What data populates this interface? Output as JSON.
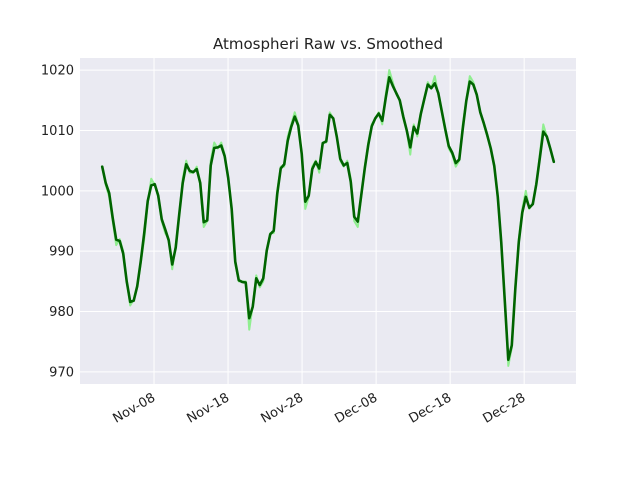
{
  "chart_data": {
    "type": "line",
    "title": "Atmospheri Raw vs. Smoothed",
    "xlabel": "",
    "ylabel": "",
    "x_start": "2023-11-01",
    "x_end": "2024-01-01",
    "xlim": [
      "2023-10-29",
      "2024-01-04"
    ],
    "ylim": [
      968,
      1022
    ],
    "x_ticks": [
      {
        "date": "2023-11-08",
        "label": "Nov-08"
      },
      {
        "date": "2023-11-18",
        "label": "Nov-18"
      },
      {
        "date": "2023-11-28",
        "label": "Nov-28"
      },
      {
        "date": "2023-12-08",
        "label": "Dec-08"
      },
      {
        "date": "2023-12-18",
        "label": "Dec-18"
      },
      {
        "date": "2023-12-28",
        "label": "Dec-28"
      }
    ],
    "y_ticks": [
      970,
      980,
      990,
      1000,
      1010,
      1020
    ],
    "grid": true,
    "legend": "none",
    "series": [
      {
        "color": "#90ee90",
        "values": [
          1004.0,
          1001.0,
          999.0,
          995.0,
          991.0,
          992.0,
          990.0,
          985.0,
          981.0,
          982.0,
          984.0,
          988.0,
          992.0,
          998.0,
          1002.0,
          1001.0,
          999.0,
          995.0,
          993.0,
          992.0,
          987.0,
          991.0,
          996.0,
          1002.0,
          1005.0,
          1003.0,
          1003.0,
          1004.0,
          1001.0,
          994.0,
          995.0,
          1005.0,
          1008.0,
          1007.0,
          1008.0,
          1006.0,
          1002.0,
          997.0,
          988.0,
          985.0,
          985.0,
          985.0,
          977.0,
          981.0,
          986.0,
          984.0,
          985.0,
          990.0,
          993.0,
          993.0,
          1000.0,
          1004.0,
          1004.0,
          1009.0,
          1011.0,
          1013.0,
          1011.0,
          1006.0,
          997.0,
          999.0,
          1004.0,
          1005.0,
          1003.0,
          1008.0,
          1008.0,
          1013.0,
          1012.0,
          1009.0,
          1005.0,
          1004.0,
          1005.0,
          1002.0,
          995.0,
          994.0,
          999.0,
          1004.0,
          1008.0,
          1011.0,
          1012.0,
          1013.0,
          1011.0,
          1016.0,
          1020.0,
          1018.0,
          1016.0,
          1015.0,
          1012.0,
          1010.0,
          1006.0,
          1011.0,
          1009.0,
          1013.0,
          1015.0,
          1018.0,
          1017.0,
          1019.0,
          1016.0,
          1013.0,
          1010.0,
          1007.0,
          1006.0,
          1004.0,
          1005.0,
          1011.0,
          1015.0,
          1019.0,
          1018.0,
          1016.0,
          1013.0,
          1011.0,
          1009.0,
          1007.0,
          1004.0,
          999.0,
          991.0,
          982.0,
          971.0,
          974.0,
          984.0,
          992.0,
          997.0,
          1000.0,
          997.0,
          998.0,
          1001.0,
          1006.0,
          1011.0,
          1009.0,
          1007.0,
          1005.0
        ]
      },
      {
        "color": "#006400",
        "values": [
          1004.0,
          1001.3,
          999.6,
          995.5,
          991.9,
          991.7,
          989.6,
          985.0,
          981.6,
          981.8,
          984.2,
          988.3,
          993.0,
          998.3,
          1000.9,
          1001.1,
          999.2,
          995.3,
          993.6,
          991.8,
          987.8,
          990.6,
          996.1,
          1001.3,
          1004.4,
          1003.3,
          1003.1,
          1003.6,
          1001.3,
          994.8,
          995.1,
          1004.2,
          1007.1,
          1007.2,
          1007.5,
          1005.7,
          1002.1,
          996.9,
          988.3,
          985.2,
          984.9,
          984.8,
          978.9,
          980.8,
          985.5,
          984.4,
          985.5,
          990.1,
          992.8,
          993.4,
          999.5,
          1003.7,
          1004.4,
          1008.3,
          1010.6,
          1012.3,
          1010.8,
          1006.1,
          998.2,
          999.2,
          1003.6,
          1004.8,
          1003.7,
          1007.9,
          1008.2,
          1012.6,
          1012.0,
          1009.0,
          1005.3,
          1004.2,
          1004.6,
          1001.5,
          995.7,
          994.9,
          999.3,
          1003.7,
          1007.6,
          1010.7,
          1012.0,
          1012.8,
          1011.6,
          1015.4,
          1018.8,
          1017.4,
          1016.2,
          1015.0,
          1012.3,
          1010.0,
          1007.2,
          1010.6,
          1009.5,
          1012.7,
          1015.2,
          1017.6,
          1017.0,
          1017.8,
          1016.2,
          1013.2,
          1010.2,
          1007.4,
          1006.3,
          1004.6,
          1005.2,
          1010.3,
          1014.9,
          1018.1,
          1017.6,
          1015.9,
          1013.0,
          1011.2,
          1009.2,
          1007.0,
          1004.1,
          999.0,
          991.4,
          981.8,
          972.0,
          974.4,
          983.7,
          991.5,
          996.4,
          999.0,
          997.2,
          997.8,
          1001.1,
          1005.4,
          1009.8,
          1009.0,
          1007.0,
          1004.8
        ]
      }
    ]
  }
}
